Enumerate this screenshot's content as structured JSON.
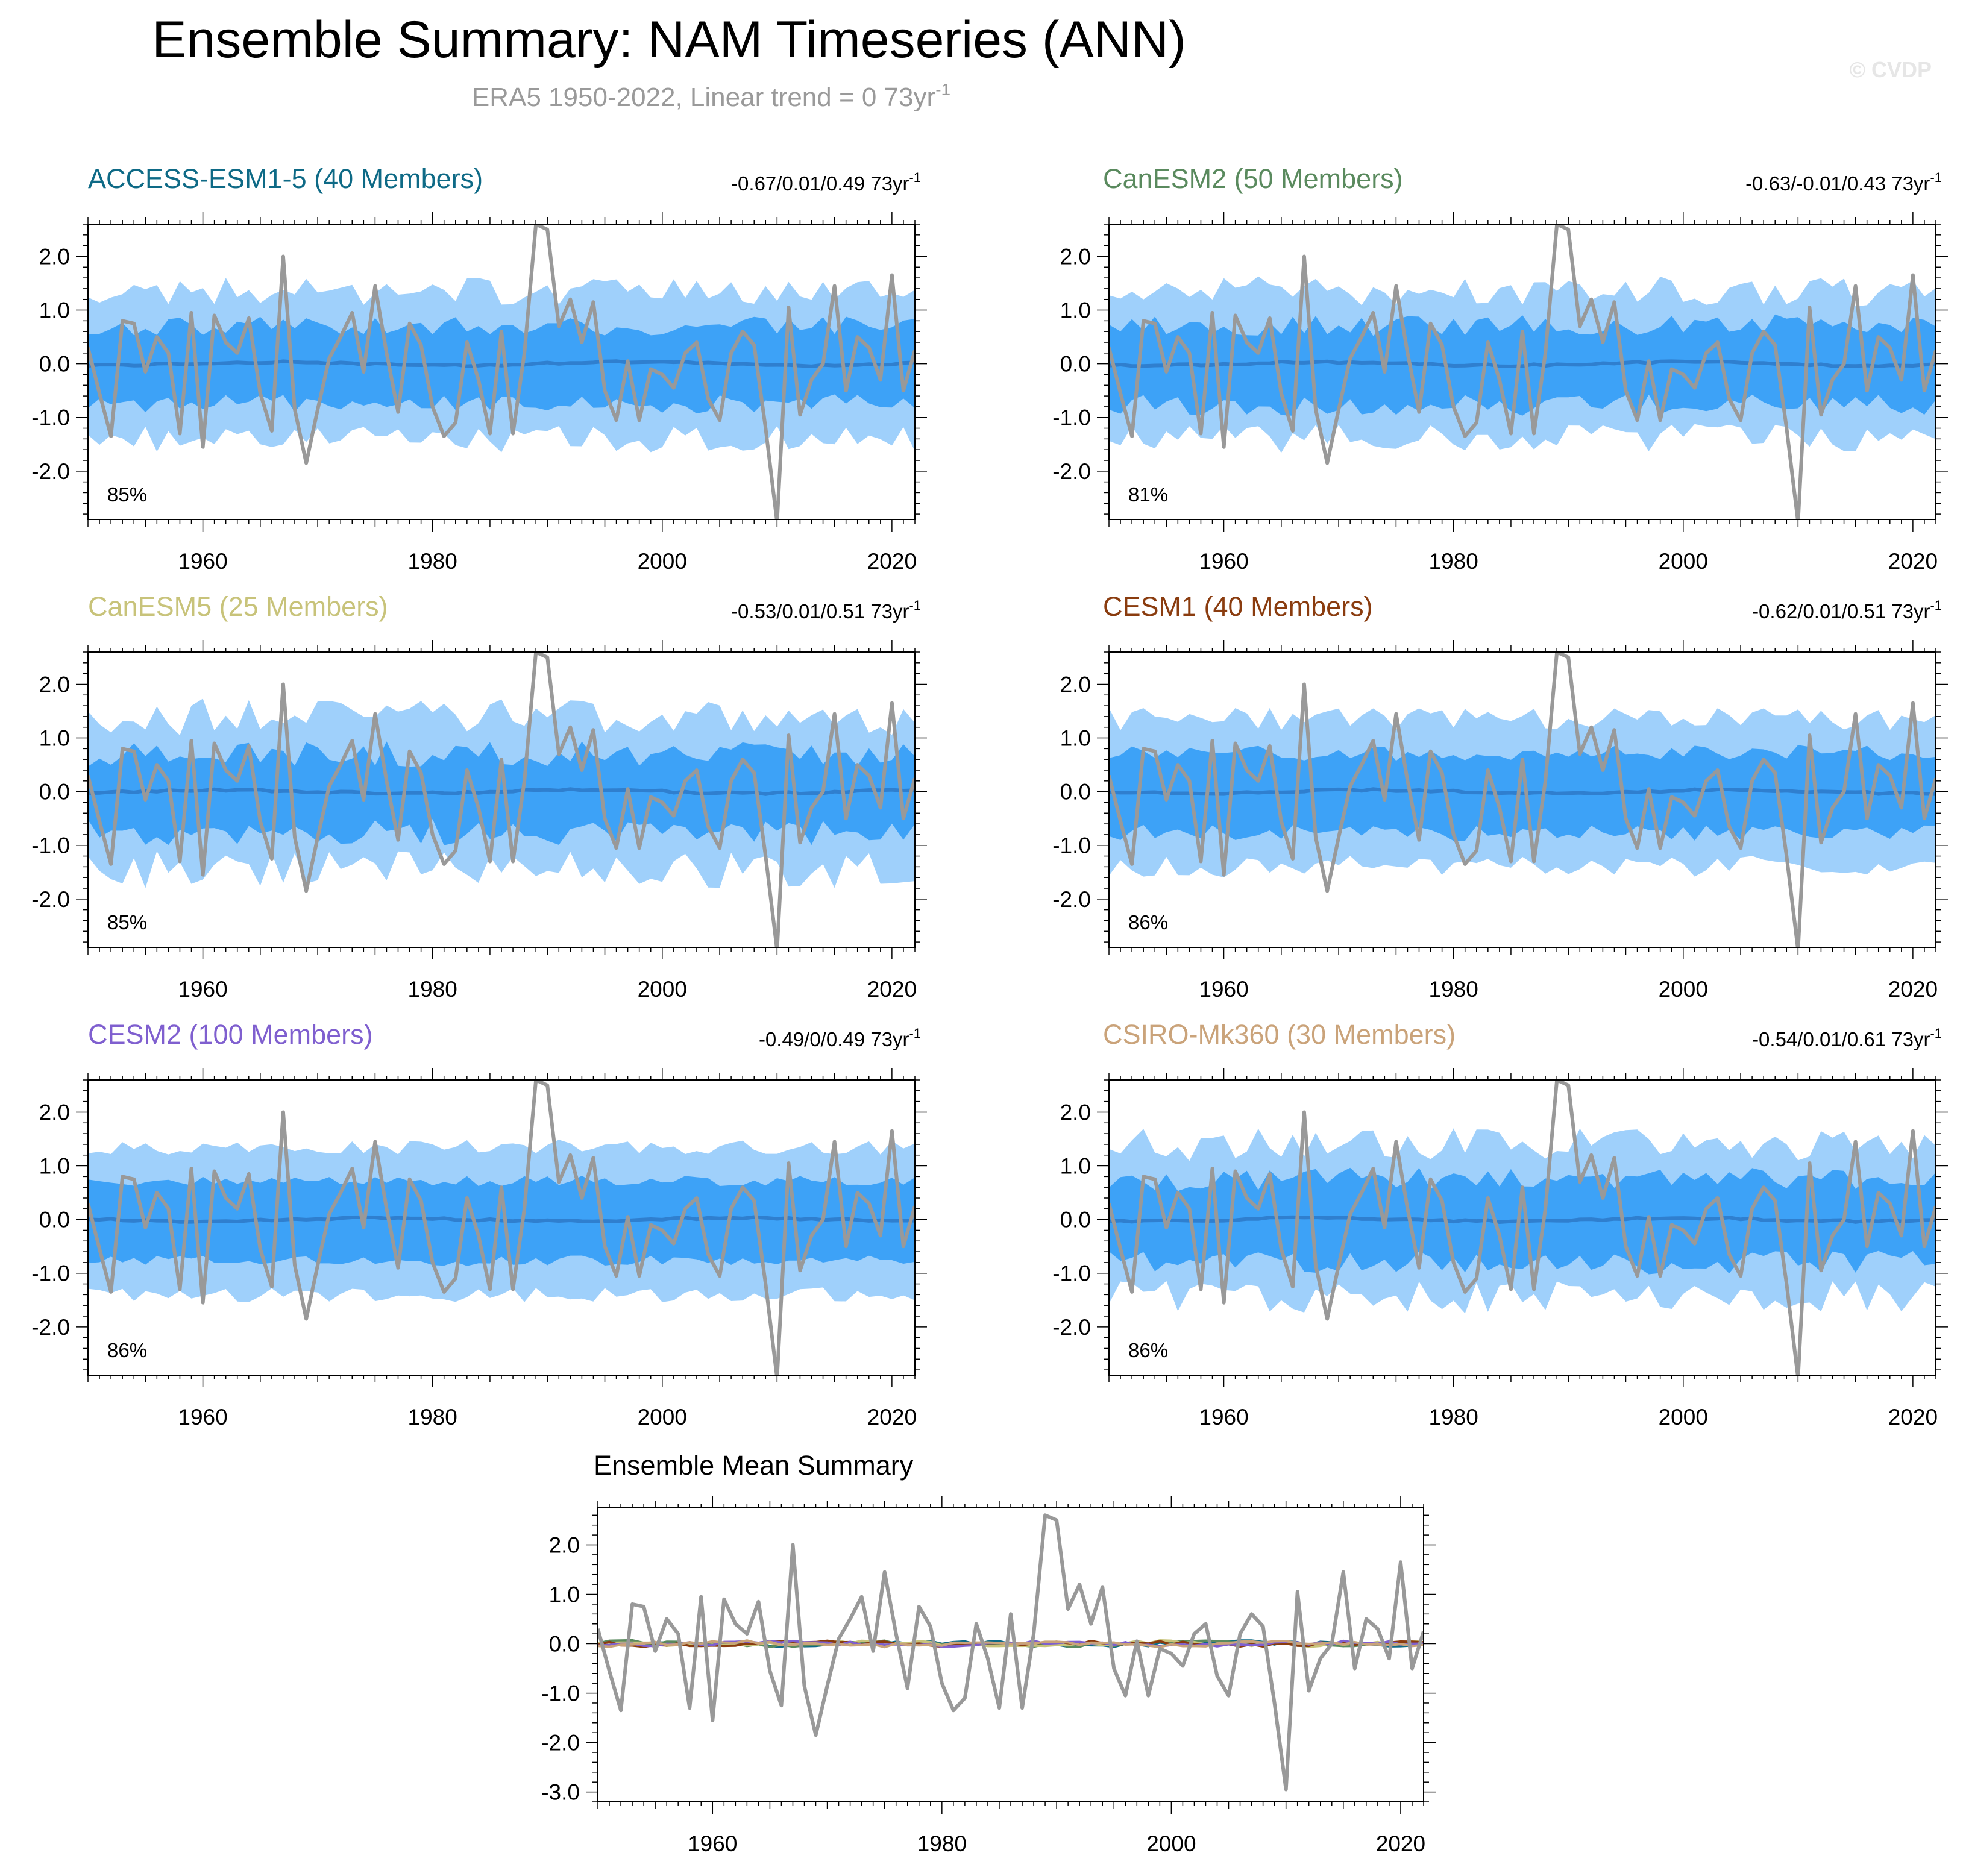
{
  "page": {
    "title": "Ensemble Summary: NAM Timeseries (ANN)",
    "subtitle_main": "ERA5 1950-2022, Linear trend = 0 73yr",
    "subtitle_sup": "-1",
    "watermark": "© CVDP"
  },
  "colors": {
    "outer_band": "#9fd0fb",
    "inner_band": "#3da2f7",
    "ensemble_mean": "#2f7fcf",
    "observations": "#999999"
  },
  "obs": {
    "name": "ERA5",
    "years": [
      1950,
      2022
    ],
    "values": [
      0.3,
      -0.55,
      -1.35,
      0.8,
      0.75,
      -0.15,
      0.5,
      0.2,
      -1.3,
      0.95,
      -1.55,
      0.9,
      0.4,
      0.2,
      0.85,
      -0.55,
      -1.25,
      2.0,
      -0.85,
      -1.85,
      -0.85,
      0.1,
      0.5,
      0.95,
      -0.15,
      1.45,
      0.2,
      -0.9,
      0.75,
      0.35,
      -0.8,
      -1.35,
      -1.1,
      0.4,
      -0.3,
      -1.3,
      0.6,
      -1.3,
      0.2,
      2.6,
      2.5,
      0.7,
      1.2,
      0.4,
      1.15,
      -0.5,
      -1.05,
      0.05,
      -1.05,
      -0.1,
      -0.2,
      -0.45,
      0.2,
      0.4,
      -0.65,
      -1.05,
      0.2,
      0.6,
      0.35,
      -1.2,
      -2.95,
      1.05,
      -0.95,
      -0.3,
      0.0,
      1.45,
      -0.5,
      0.5,
      0.3,
      -0.3,
      1.65,
      -0.5,
      0.25
    ]
  },
  "x_axis": {
    "min": 1950,
    "max": 2022,
    "major_ticks": [
      1960,
      1980,
      2000,
      2020
    ],
    "major_tick_labels": [
      "1960",
      "1980",
      "2000",
      "2020"
    ]
  },
  "panels": [
    {
      "id": "access",
      "title": "ACCESS-ESM1-5 (40 Members)",
      "title_color": "#0e6a86",
      "trend_text": "-0.67/0.01/0.49 73yr",
      "trend_sup": "-1",
      "percent_label": "85%",
      "y_range": [
        -2.9,
        2.6
      ],
      "y_ticks": [
        2.0,
        1.0,
        0.0,
        -1.0,
        -2.0
      ],
      "y_tick_labels": [
        "2.0",
        "1.0",
        "0.0",
        "-1.0",
        "-2.0"
      ],
      "seed": 11,
      "band": {
        "outer": 1.35,
        "inner": 0.7,
        "amp": 0.18
      }
    },
    {
      "id": "canesm2",
      "title": "CanESM2 (50 Members)",
      "title_color": "#5a8a5e",
      "trend_text": "-0.63/-0.01/0.43 73yr",
      "trend_sup": "-1",
      "percent_label": "81%",
      "y_range": [
        -2.9,
        2.6
      ],
      "y_ticks": [
        2.0,
        1.0,
        0.0,
        -1.0,
        -2.0
      ],
      "y_tick_labels": [
        "2.0",
        "1.0",
        "0.0",
        "-1.0",
        "-2.0"
      ],
      "seed": 23,
      "band": {
        "outer": 1.35,
        "inner": 0.72,
        "amp": 0.2
      }
    },
    {
      "id": "canesm5",
      "title": "CanESM5 (25 Members)",
      "title_color": "#c8c37a",
      "trend_text": "-0.53/0.01/0.51 73yr",
      "trend_sup": "-1",
      "percent_label": "85%",
      "y_range": [
        -2.9,
        2.6
      ],
      "y_ticks": [
        2.0,
        1.0,
        0.0,
        -1.0,
        -2.0
      ],
      "y_tick_labels": [
        "2.0",
        "1.0",
        "0.0",
        "-1.0",
        "-2.0"
      ],
      "seed": 37,
      "band": {
        "outer": 1.4,
        "inner": 0.7,
        "amp": 0.25
      }
    },
    {
      "id": "cesm1",
      "title": "CESM1 (40 Members)",
      "title_color": "#8a3c0f",
      "trend_text": "-0.62/0.01/0.51 73yr",
      "trend_sup": "-1",
      "percent_label": "86%",
      "y_range": [
        -2.9,
        2.6
      ],
      "y_ticks": [
        2.0,
        1.0,
        0.0,
        -1.0,
        -2.0
      ],
      "y_tick_labels": [
        "2.0",
        "1.0",
        "0.0",
        "-1.0",
        "-2.0"
      ],
      "seed": 41,
      "band": {
        "outer": 1.35,
        "inner": 0.72,
        "amp": 0.15
      }
    },
    {
      "id": "cesm2",
      "title": "CESM2 (100 Members)",
      "title_color": "#7f5fcf",
      "trend_text": "-0.49/0/0.49 73yr",
      "trend_sup": "-1",
      "percent_label": "86%",
      "y_range": [
        -2.9,
        2.6
      ],
      "y_ticks": [
        2.0,
        1.0,
        0.0,
        -1.0,
        -2.0
      ],
      "y_tick_labels": [
        "2.0",
        "1.0",
        "0.0",
        "-1.0",
        "-2.0"
      ],
      "seed": 53,
      "band": {
        "outer": 1.35,
        "inner": 0.72,
        "amp": 0.1
      }
    },
    {
      "id": "csiro",
      "title": "CSIRO-Mk360 (30 Members)",
      "title_color": "#caa37a",
      "trend_text": "-0.54/0.01/0.61 73yr",
      "trend_sup": "-1",
      "percent_label": "86%",
      "y_range": [
        -2.9,
        2.6
      ],
      "y_ticks": [
        2.0,
        1.0,
        0.0,
        -1.0,
        -2.0
      ],
      "y_tick_labels": [
        "2.0",
        "1.0",
        "0.0",
        "-1.0",
        "-2.0"
      ],
      "seed": 67,
      "band": {
        "outer": 1.4,
        "inner": 0.75,
        "amp": 0.22
      }
    }
  ],
  "summary": {
    "title": "Ensemble Mean Summary",
    "y_range": [
      -3.2,
      2.75
    ],
    "y_ticks": [
      2.0,
      1.0,
      0.0,
      -1.0,
      -2.0,
      -3.0
    ],
    "y_tick_labels": [
      "2.0",
      "1.0",
      "0.0",
      "-1.0",
      "-2.0",
      "-3.0"
    ],
    "line_colors": [
      "#0e6a86",
      "#5a8a5e",
      "#c8c37a",
      "#8a3c0f",
      "#7f5fcf",
      "#caa37a"
    ]
  }
}
